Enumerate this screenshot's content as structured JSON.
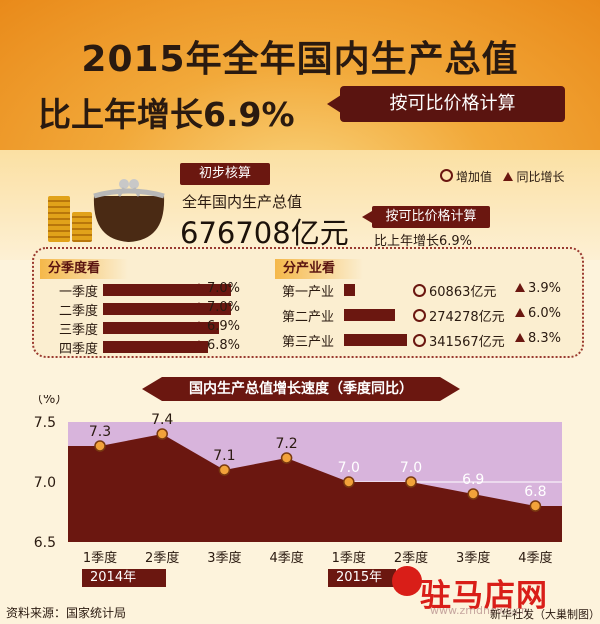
{
  "header": {
    "title_line1": "2015年全年国内生产总值",
    "title_line2": "比上年增长6.9%",
    "subtitle": "按可比价格计算"
  },
  "summary": {
    "prelim_label": "初步核算",
    "gdp_label": "全年国内生产总值",
    "gdp_value": "676708亿元",
    "comparable_label": "按可比价格计算",
    "growth_text": "比上年增长6.9%"
  },
  "legend": {
    "value_label": "增加值",
    "growth_label": "同比增长"
  },
  "quarterly": {
    "section_label": "分季度看",
    "rows": [
      {
        "label": "一季度",
        "growth": "7.0%",
        "value": 7.0
      },
      {
        "label": "二季度",
        "growth": "7.0%",
        "value": 7.0
      },
      {
        "label": "三季度",
        "growth": "6.9%",
        "value": 6.9
      },
      {
        "label": "四季度",
        "growth": "6.8%",
        "value": 6.8
      }
    ]
  },
  "industry": {
    "section_label": "分产业看",
    "rows": [
      {
        "label": "第一产业",
        "value_text": "60863亿元",
        "value": 60863,
        "growth": "3.9%"
      },
      {
        "label": "第二产业",
        "value_text": "274278亿元",
        "value": 274278,
        "growth": "6.0%"
      },
      {
        "label": "第三产业",
        "value_text": "341567亿元",
        "value": 341567,
        "growth": "8.3%"
      }
    ]
  },
  "chart_data": {
    "type": "area",
    "title": "国内生产总值增长速度（季度同比）",
    "ylabel": "（%）",
    "ylim": [
      6.5,
      7.5
    ],
    "yticks": [
      "7.5",
      "7.0",
      "6.5"
    ],
    "categories": [
      "1季度",
      "2季度",
      "3季度",
      "4季度",
      "1季度",
      "2季度",
      "3季度",
      "4季度"
    ],
    "values": [
      7.3,
      7.4,
      7.1,
      7.2,
      7.0,
      7.0,
      6.9,
      6.8
    ],
    "value_labels": [
      "7.3",
      "7.4",
      "7.1",
      "7.2",
      "7.0",
      "7.0",
      "6.9",
      "6.8"
    ],
    "year_groups": [
      "2014年",
      "2015年"
    ],
    "colors": {
      "area": "#6b1710",
      "background": "#d8b4dc",
      "marker": "#f2a23a"
    }
  },
  "footer": {
    "source": "资料来源：国家统计局",
    "credit": "新华社发（大巢制图）"
  },
  "watermark": {
    "text": "驻马店网",
    "url": "www.zmdnews.cn"
  }
}
